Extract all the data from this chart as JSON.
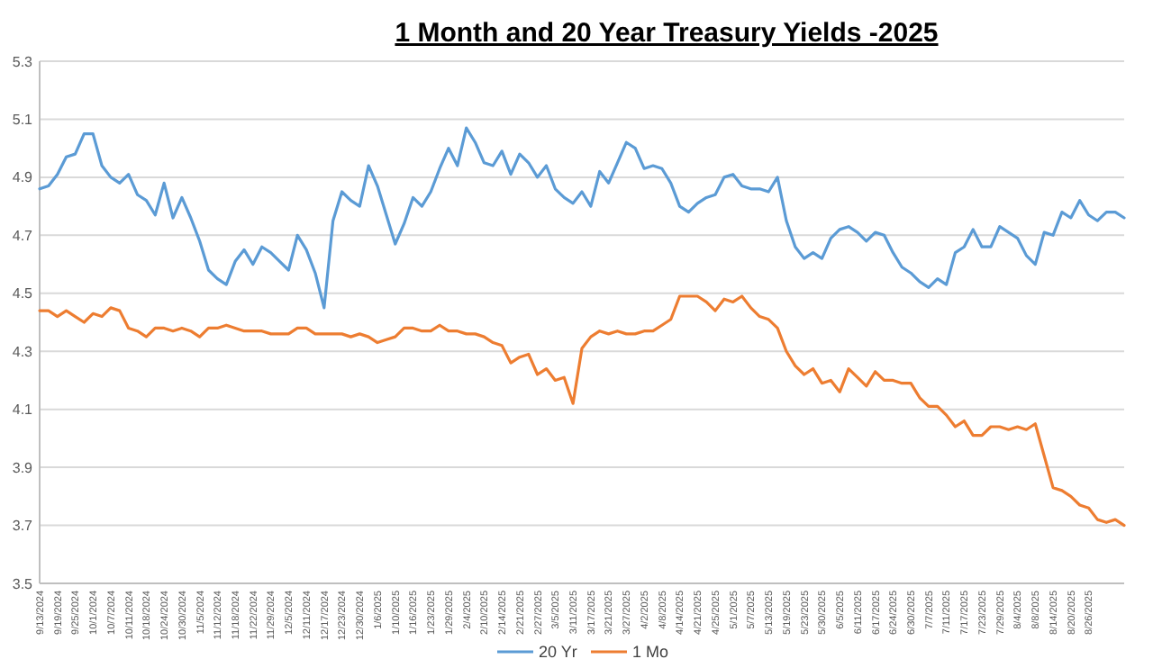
{
  "chart_data": {
    "type": "line",
    "title": "1 Month and 20 Year Treasury Yields -2025",
    "categories": [
      "9/13/2024",
      null,
      "9/19/2024",
      null,
      "9/25/2024",
      null,
      "10/1/2024",
      null,
      "10/7/2024",
      null,
      "10/11/2024",
      null,
      "10/18/2024",
      null,
      "10/24/2024",
      null,
      "10/30/2024",
      null,
      "11/5/2024",
      null,
      "11/12/2024",
      null,
      "11/18/2024",
      null,
      "11/22/2024",
      null,
      "11/29/2024",
      null,
      "12/5/2024",
      null,
      "12/11/2024",
      null,
      "12/17/2024",
      null,
      "12/23/2024",
      null,
      "12/30/2024",
      null,
      "1/6/2025",
      null,
      "1/10/2025",
      null,
      "1/16/2025",
      null,
      "1/23/2025",
      null,
      "1/29/2025",
      null,
      "2/4/2025",
      null,
      "2/10/2025",
      null,
      "2/14/2025",
      null,
      "2/21/2025",
      null,
      "2/27/2025",
      null,
      "3/5/2025",
      null,
      "3/11/2025",
      null,
      "3/17/2025",
      null,
      "3/21/2025",
      null,
      "3/27/2025",
      null,
      "4/2/2025",
      null,
      "4/8/2025",
      null,
      "4/14/2025",
      null,
      "4/21/2025",
      null,
      "4/25/2025",
      null,
      "5/1/2025",
      null,
      "5/7/2025",
      null,
      "5/13/2025",
      null,
      "5/19/2025",
      null,
      "5/23/2025",
      null,
      "5/30/2025",
      null,
      "6/5/2025",
      null,
      "6/11/2025",
      null,
      "6/17/2025",
      null,
      "6/24/2025",
      null,
      "6/30/2025",
      null,
      "7/7/2025",
      null,
      "7/11/2025",
      null,
      "7/17/2025",
      null,
      "7/23/2025",
      null,
      "7/29/2025",
      null,
      "8/4/2025",
      null,
      "8/8/2025",
      null,
      "8/14/2025",
      null,
      "8/20/2025",
      null,
      "8/26/2025",
      null,
      null,
      null,
      null
    ],
    "series": [
      {
        "name": "20 Yr",
        "color": "#5b9bd5",
        "values": [
          4.86,
          4.87,
          4.91,
          4.97,
          4.98,
          5.05,
          5.05,
          4.94,
          4.9,
          4.88,
          4.91,
          4.84,
          4.82,
          4.77,
          4.88,
          4.76,
          4.83,
          4.76,
          4.68,
          4.58,
          4.55,
          4.53,
          4.61,
          4.65,
          4.6,
          4.66,
          4.64,
          4.61,
          4.58,
          4.7,
          4.65,
          4.57,
          4.45,
          4.75,
          4.85,
          4.82,
          4.8,
          4.94,
          4.87,
          4.77,
          4.67,
          4.74,
          4.83,
          4.8,
          4.85,
          4.93,
          5.0,
          4.94,
          5.07,
          5.02,
          4.95,
          4.94,
          4.99,
          4.91,
          4.98,
          4.95,
          4.9,
          4.94,
          4.86,
          4.83,
          4.81,
          4.85,
          4.8,
          4.92,
          4.88,
          4.95,
          5.02,
          5.0,
          4.93,
          4.94,
          4.93,
          4.88,
          4.8,
          4.78,
          4.81,
          4.83,
          4.84,
          4.9,
          4.91,
          4.87,
          4.86,
          4.86,
          4.85,
          4.9,
          4.75,
          4.66,
          4.62,
          4.64,
          4.62,
          4.69,
          4.72,
          4.73,
          4.71,
          4.68,
          4.71,
          4.7,
          4.64,
          4.59,
          4.57,
          4.54,
          4.52,
          4.55,
          4.53,
          4.64,
          4.66,
          4.72,
          4.66,
          4.66,
          4.73,
          4.71,
          4.69,
          4.63,
          4.6,
          4.71,
          4.7,
          4.78,
          4.76,
          4.82,
          4.77,
          4.75,
          4.78,
          4.78,
          4.76
        ]
      },
      {
        "name": "1 Mo",
        "color": "#ed7d31",
        "values": [
          4.44,
          4.44,
          4.42,
          4.44,
          4.42,
          4.4,
          4.43,
          4.42,
          4.45,
          4.44,
          4.38,
          4.37,
          4.35,
          4.38,
          4.38,
          4.37,
          4.38,
          4.37,
          4.35,
          4.38,
          4.38,
          4.39,
          4.38,
          4.37,
          4.37,
          4.37,
          4.36,
          4.36,
          4.36,
          4.38,
          4.38,
          4.36,
          4.36,
          4.36,
          4.36,
          4.35,
          4.36,
          4.35,
          4.33,
          4.34,
          4.35,
          4.38,
          4.38,
          4.37,
          4.37,
          4.39,
          4.37,
          4.37,
          4.36,
          4.36,
          4.35,
          4.33,
          4.32,
          4.26,
          4.28,
          4.29,
          4.22,
          4.24,
          4.2,
          4.21,
          4.12,
          4.31,
          4.35,
          4.37,
          4.36,
          4.37,
          4.36,
          4.36,
          4.37,
          4.37,
          4.39,
          4.41,
          4.49,
          4.49,
          4.49,
          4.47,
          4.44,
          4.48,
          4.47,
          4.49,
          4.45,
          4.42,
          4.41,
          4.38,
          4.3,
          4.25,
          4.22,
          4.24,
          4.19,
          4.2,
          4.16,
          4.24,
          4.21,
          4.18,
          4.23,
          4.2,
          4.2,
          4.19,
          4.19,
          4.14,
          4.11,
          4.11,
          4.08,
          4.04,
          4.06,
          4.01,
          4.01,
          4.04,
          4.04,
          4.03,
          4.04,
          4.03,
          4.05,
          3.94,
          3.83,
          3.82,
          3.8,
          3.77,
          3.76,
          3.72,
          3.71,
          3.72,
          3.7
        ]
      }
    ],
    "ylim": [
      3.5,
      5.3
    ],
    "yticks": [
      3.5,
      3.7,
      3.9,
      4.1,
      4.3,
      4.5,
      4.7,
      4.9,
      5.1,
      5.3
    ],
    "grid": true,
    "legend": "bottom"
  }
}
